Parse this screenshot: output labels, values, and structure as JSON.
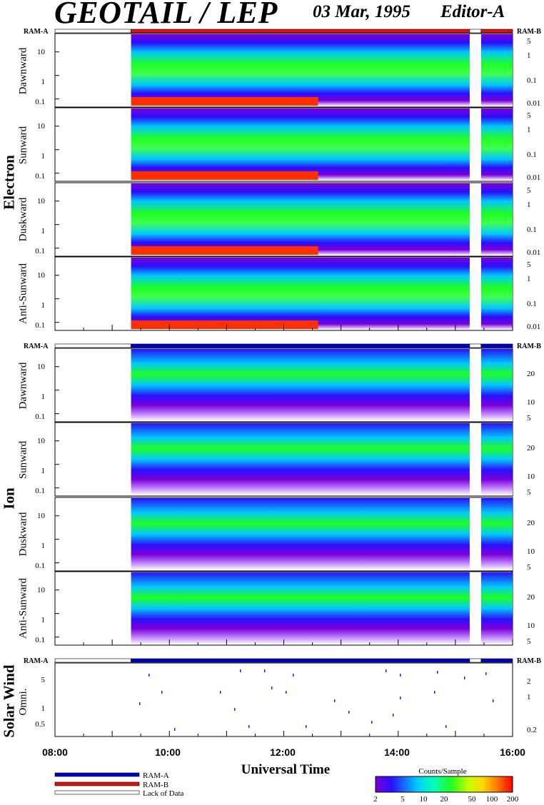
{
  "header": {
    "title": "GEOTAIL / LEP",
    "date": "03 Mar, 1995",
    "editor": "Editor-A"
  },
  "ram_labels": {
    "left": "RAM-A",
    "right": "RAM-B"
  },
  "groups": {
    "electron": "Electron",
    "ion": "Ion",
    "solar_wind": "Solar Wind"
  },
  "panel_labels": {
    "electron": [
      "Dawnward",
      "Sunward",
      "Duskward",
      "Anti-Sunward"
    ],
    "ion": [
      "Dawnward",
      "Sunward",
      "Duskward",
      "Anti-Sunward"
    ],
    "solar_wind": "Omni."
  },
  "x_axis": {
    "title": "Universal Time",
    "ticks": [
      "08:00",
      "10:00",
      "12:00",
      "14:00",
      "16:00"
    ]
  },
  "y_ticks": {
    "electron_left": [
      "10",
      "1",
      "0.1"
    ],
    "electron_right": [
      "5",
      "1",
      "0.1",
      "0.01"
    ],
    "ion_left": [
      "10",
      "1",
      "0.1"
    ],
    "ion_right": [
      "20",
      "10",
      "5"
    ],
    "sw_left": [
      "5",
      "1",
      "0.5"
    ],
    "sw_right": [
      "2",
      "1",
      "0.2"
    ]
  },
  "legend": {
    "ram_a": "RAM-A",
    "ram_b": "RAM-B",
    "lack": "Lack of Data"
  },
  "colorbar": {
    "title": "Counts/Sample",
    "ticks": [
      "2",
      "5",
      "10",
      "20",
      "50",
      "100",
      "200"
    ],
    "colors": [
      "#7a00d9",
      "#2a10ff",
      "#0066ff",
      "#00c8ff",
      "#00ffc0",
      "#20ff20",
      "#c8ff00",
      "#ffd700",
      "#ff8000",
      "#ff2000",
      "#ff0000"
    ]
  },
  "colors": {
    "ram_a": "#0000cc",
    "ram_b": "#dd1111",
    "lack": "#ffffff"
  },
  "chart_data": {
    "type": "heatmap",
    "x_range_hours": [
      8,
      16
    ],
    "data_start_hour": 9.33,
    "gap_hours": [
      [
        15.25,
        15.45
      ]
    ],
    "ram_status_electron": [
      {
        "from": 8.0,
        "to": 9.33,
        "mode": "Lack of Data"
      },
      {
        "from": 9.33,
        "to": 15.25,
        "mode": "RAM-B"
      },
      {
        "from": 15.25,
        "to": 15.45,
        "mode": "Lack of Data"
      },
      {
        "from": 15.45,
        "to": 16.0,
        "mode": "RAM-B"
      }
    ],
    "ram_status_ion": [
      {
        "from": 8.0,
        "to": 9.33,
        "mode": "Lack of Data"
      },
      {
        "from": 9.33,
        "to": 15.25,
        "mode": "RAM-A"
      },
      {
        "from": 15.25,
        "to": 15.45,
        "mode": "Lack of Data"
      },
      {
        "from": 15.45,
        "to": 16.0,
        "mode": "RAM-A"
      }
    ],
    "electron_energy_range_keV": [
      0.08,
      40
    ],
    "ion_energy_range_keV": [
      0.08,
      40
    ],
    "solar_wind_energy_range_keV": [
      0.2,
      8
    ],
    "colorscale_counts_per_sample": [
      2,
      200
    ]
  }
}
